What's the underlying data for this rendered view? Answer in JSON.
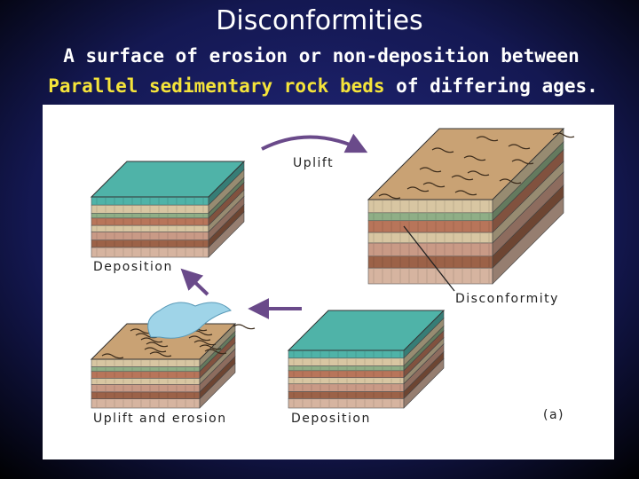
{
  "header": {
    "title": "Disconformities",
    "subtitle": {
      "line1": "A surface of erosion or non-deposition between",
      "highlight": "Parallel sedimentary rock beds",
      "rest": " of differing ages."
    }
  },
  "diagram": {
    "labels": {
      "uplift": "Uplift",
      "deposition_top": "Deposition",
      "disconformity": "Disconformity",
      "uplift_erosion": "Uplift and erosion",
      "deposition_bottom": "Deposition",
      "panel": "(a)"
    }
  }
}
